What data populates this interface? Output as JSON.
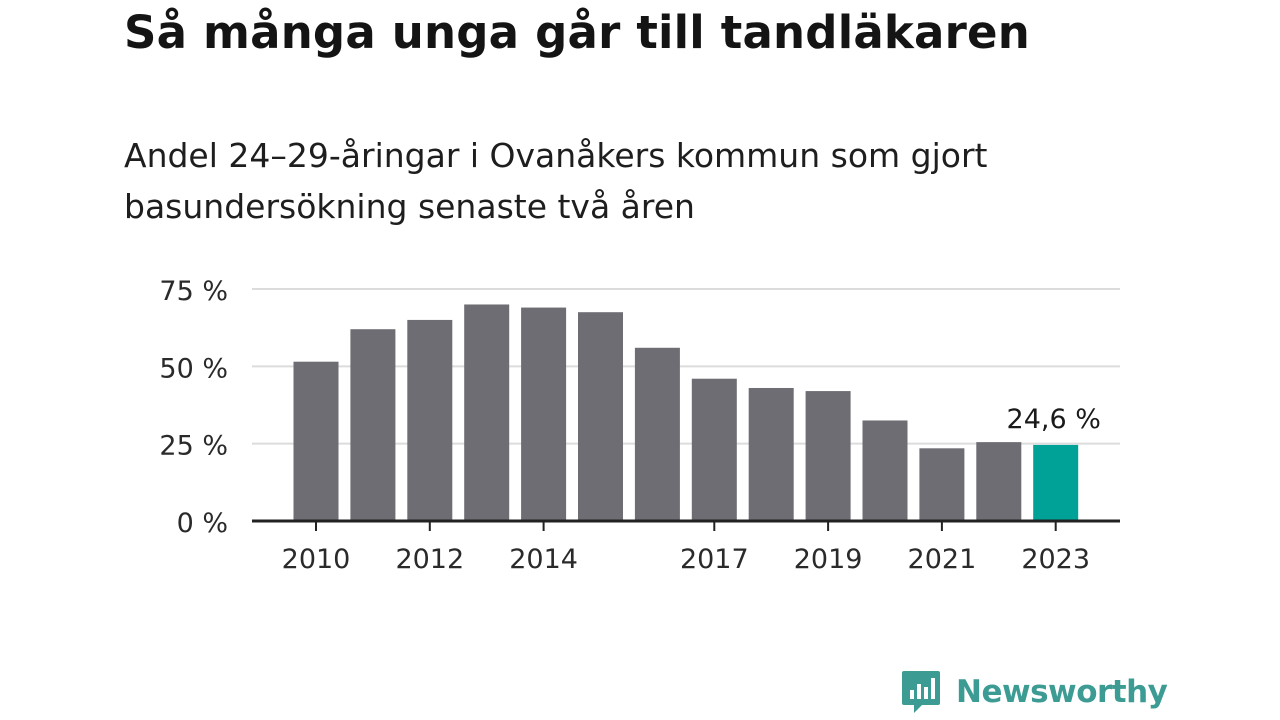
{
  "title": "Så många unga går till tandläkaren",
  "subtitle": "Andel 24–29-åringar i Ovanåkers kommun som gjort basundersökning senaste två åren",
  "colors": {
    "bar": "#6e6d73",
    "highlight": "#00a297",
    "gridline": "#dcdcdc",
    "axis": "#222222",
    "brand": "#3c9b93"
  },
  "chart_data": {
    "type": "bar",
    "x": [
      2010,
      2011,
      2012,
      2013,
      2014,
      2015,
      2016,
      2017,
      2018,
      2019,
      2020,
      2021,
      2022,
      2023
    ],
    "values": [
      51.5,
      62,
      65,
      70,
      69,
      67.5,
      56,
      46,
      43,
      42,
      32.5,
      23.5,
      25.5,
      24.6
    ],
    "unit": "%",
    "ylim": [
      0,
      75
    ],
    "yticks": [
      0,
      25,
      50,
      75
    ],
    "ytick_labels": [
      "0 %",
      "25 %",
      "50 %",
      "75 %"
    ],
    "xtick_years": [
      2010,
      2012,
      2014,
      2017,
      2019,
      2021,
      2023
    ],
    "xtick_labels": [
      "2010",
      "2012",
      "2014",
      "2017",
      "2019",
      "2021",
      "2023"
    ],
    "highlight_year": 2023,
    "annotation": "24,6 %",
    "grid": true,
    "xlabel": "",
    "ylabel": ""
  },
  "logo": {
    "text": "Newsworthy",
    "icon": "bar-chart-speech-bubble-icon"
  }
}
